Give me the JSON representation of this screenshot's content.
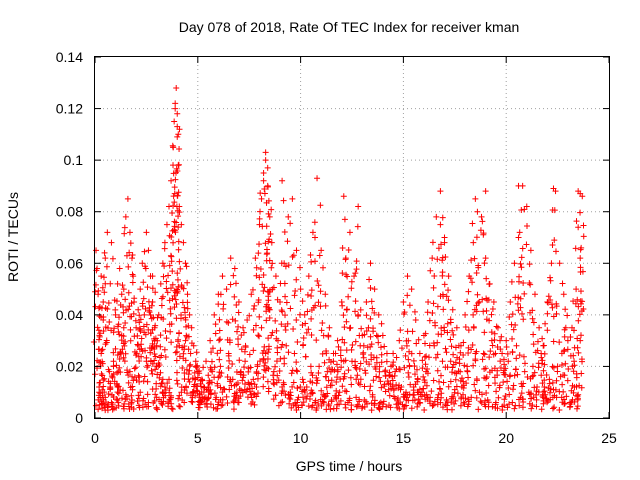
{
  "chart_data": {
    "type": "scatter",
    "title": "Day 078 of 2018, Rate Of TEC Index for receiver kman",
    "xlabel": "GPS time / hours",
    "ylabel": "ROTI / TECUs",
    "xlim": [
      0,
      25
    ],
    "ylim": [
      0,
      0.14
    ],
    "xticks": [
      "0",
      "5",
      "10",
      "15",
      "20",
      "25"
    ],
    "yticks": [
      "0",
      "0.02",
      "0.04",
      "0.06",
      "0.08",
      "0.1",
      "0.12",
      "0.14"
    ],
    "grid": true,
    "marker": "+",
    "series_color": "#ff0000",
    "series": [
      {
        "name": "ROTI",
        "x": [
          0.05,
          0.1,
          0.15,
          0.2,
          0.3,
          0.4,
          0.5,
          0.6,
          0.7,
          0.8,
          0.9,
          1.0,
          1.1,
          1.2,
          1.3,
          1.4,
          1.5,
          1.6,
          1.7,
          1.8,
          1.9,
          2.0,
          2.1,
          2.2,
          2.3,
          2.4,
          2.5,
          2.6,
          2.7,
          2.8,
          2.9,
          3.0,
          3.1,
          3.2,
          3.3,
          3.4,
          3.5,
          3.6,
          3.7,
          3.8,
          3.85,
          3.9,
          3.95,
          4.0,
          4.05,
          4.1,
          4.2,
          4.3,
          4.4,
          4.5,
          4.6,
          4.7,
          4.8,
          4.9,
          5.0,
          5.2,
          5.4,
          5.6,
          5.8,
          6.0,
          6.2,
          6.4,
          6.6,
          6.8,
          7.0,
          7.2,
          7.4,
          7.6,
          7.8,
          8.0,
          8.1,
          8.2,
          8.3,
          8.4,
          8.5,
          8.6,
          8.8,
          9.0,
          9.2,
          9.4,
          9.6,
          9.8,
          10.0,
          10.2,
          10.4,
          10.6,
          10.8,
          11.0,
          11.2,
          11.4,
          11.6,
          11.8,
          12.0,
          12.2,
          12.4,
          12.6,
          12.8,
          13.0,
          13.2,
          13.4,
          13.6,
          13.8,
          14.0,
          14.2,
          14.4,
          14.6,
          14.8,
          15.0,
          15.2,
          15.4,
          15.6,
          15.8,
          16.0,
          16.2,
          16.4,
          16.6,
          16.8,
          17.0,
          17.2,
          17.4,
          17.6,
          17.8,
          18.0,
          18.2,
          18.4,
          18.6,
          18.8,
          19.0,
          19.2,
          19.4,
          19.6,
          19.8,
          20.0,
          20.2,
          20.4,
          20.6,
          20.8,
          21.0,
          21.2,
          21.4,
          21.6,
          21.8,
          22.0,
          22.2,
          22.4,
          22.6,
          22.8,
          23.0,
          23.2,
          23.4,
          23.6,
          23.7,
          0.2,
          0.5,
          0.8,
          1.1,
          1.5,
          1.8,
          2.2,
          2.6,
          3.0,
          3.4,
          3.7,
          4.2,
          4.6,
          5.1,
          5.5,
          5.9,
          6.3,
          6.7,
          7.1,
          7.5,
          7.9,
          8.3,
          8.7,
          9.1,
          9.5,
          9.9,
          10.3,
          10.7,
          11.1,
          11.5,
          11.9,
          12.3,
          12.7,
          13.1,
          13.5,
          13.9,
          14.3,
          14.7,
          15.1,
          15.5,
          15.9,
          16.3,
          16.7,
          17.1,
          17.5,
          17.9,
          18.3,
          18.7,
          19.1,
          19.5,
          19.9,
          20.3,
          20.7,
          21.1,
          21.5,
          21.9,
          22.3,
          22.7,
          23.1,
          23.5,
          0.3,
          0.9,
          1.7,
          2.5,
          3.3,
          4.1,
          4.9,
          5.7,
          6.5,
          7.3,
          8.1,
          8.9,
          9.7,
          10.5,
          11.3,
          12.1,
          12.9,
          13.7,
          14.5,
          15.3,
          16.1,
          16.9,
          17.7,
          18.5,
          19.3,
          20.1,
          20.9,
          21.7,
          22.5,
          23.3,
          0.4,
          1.3,
          2.1,
          2.9,
          3.6,
          4.4,
          5.3,
          6.1,
          6.9,
          7.7,
          8.5,
          9.3,
          10.1,
          10.9,
          11.7,
          12.5,
          13.3,
          14.1,
          14.9,
          15.7,
          16.5,
          17.3,
          18.1,
          18.9,
          19.7,
          20.5,
          21.3,
          22.1,
          22.9,
          23.6,
          3.9,
          4.0,
          4.0,
          8.3,
          8.4,
          8.2,
          9.1,
          10.7,
          16.8,
          18.5,
          20.6,
          22.3,
          23.6,
          23.5,
          1.4,
          2.8,
          12.1,
          12.8,
          17.0,
          19.0
        ],
        "y": [
          0.065,
          0.058,
          0.048,
          0.012,
          0.055,
          0.045,
          0.062,
          0.072,
          0.018,
          0.068,
          0.022,
          0.04,
          0.052,
          0.058,
          0.048,
          0.035,
          0.078,
          0.085,
          0.072,
          0.062,
          0.045,
          0.035,
          0.028,
          0.05,
          0.06,
          0.04,
          0.072,
          0.065,
          0.055,
          0.045,
          0.035,
          0.028,
          0.04,
          0.052,
          0.06,
          0.068,
          0.075,
          0.082,
          0.092,
          0.105,
          0.115,
          0.122,
          0.128,
          0.118,
          0.098,
          0.082,
          0.075,
          0.068,
          0.06,
          0.048,
          0.04,
          0.035,
          0.028,
          0.022,
          0.018,
          0.015,
          0.022,
          0.03,
          0.04,
          0.048,
          0.055,
          0.05,
          0.062,
          0.058,
          0.045,
          0.035,
          0.038,
          0.048,
          0.062,
          0.075,
          0.085,
          0.095,
          0.103,
          0.09,
          0.078,
          0.068,
          0.055,
          0.045,
          0.06,
          0.078,
          0.085,
          0.065,
          0.05,
          0.04,
          0.055,
          0.072,
          0.093,
          0.065,
          0.048,
          0.035,
          0.025,
          0.03,
          0.045,
          0.062,
          0.072,
          0.055,
          0.04,
          0.032,
          0.045,
          0.06,
          0.05,
          0.04,
          0.032,
          0.025,
          0.02,
          0.018,
          0.03,
          0.045,
          0.055,
          0.05,
          0.038,
          0.025,
          0.032,
          0.045,
          0.062,
          0.078,
          0.088,
          0.07,
          0.055,
          0.042,
          0.035,
          0.028,
          0.04,
          0.055,
          0.068,
          0.08,
          0.078,
          0.062,
          0.052,
          0.045,
          0.035,
          0.025,
          0.03,
          0.045,
          0.06,
          0.07,
          0.09,
          0.082,
          0.065,
          0.048,
          0.035,
          0.028,
          0.045,
          0.06,
          0.088,
          0.06,
          0.048,
          0.03,
          0.035,
          0.05,
          0.062,
          0.086,
          0.01,
          0.008,
          0.006,
          0.012,
          0.009,
          0.007,
          0.01,
          0.006,
          0.008,
          0.012,
          0.008,
          0.01,
          0.014,
          0.009,
          0.012,
          0.008,
          0.011,
          0.015,
          0.018,
          0.013,
          0.02,
          0.025,
          0.018,
          0.012,
          0.01,
          0.008,
          0.012,
          0.006,
          0.009,
          0.007,
          0.01,
          0.006,
          0.008,
          0.007,
          0.009,
          0.006,
          0.005,
          0.007,
          0.009,
          0.012,
          0.01,
          0.008,
          0.009,
          0.007,
          0.011,
          0.009,
          0.008,
          0.01,
          0.007,
          0.006,
          0.005,
          0.006,
          0.008,
          0.01,
          0.012,
          0.009,
          0.011,
          0.008,
          0.006,
          0.009,
          0.025,
          0.02,
          0.018,
          0.022,
          0.015,
          0.028,
          0.02,
          0.018,
          0.025,
          0.022,
          0.035,
          0.03,
          0.025,
          0.02,
          0.018,
          0.022,
          0.028,
          0.032,
          0.025,
          0.02,
          0.018,
          0.022,
          0.028,
          0.025,
          0.03,
          0.022,
          0.018,
          0.025,
          0.02,
          0.022,
          0.038,
          0.032,
          0.042,
          0.03,
          0.015,
          0.03,
          0.012,
          0.02,
          0.01,
          0.015,
          0.042,
          0.028,
          0.015,
          0.02,
          0.025,
          0.022,
          0.035,
          0.018,
          0.012,
          0.015,
          0.028,
          0.022,
          0.02,
          0.025,
          0.03,
          0.028,
          0.02,
          0.015,
          0.035,
          0.03,
          0.12,
          0.113,
          0.109,
          0.1,
          0.097,
          0.092,
          0.092,
          0.07,
          0.075,
          0.085,
          0.09,
          0.089,
          0.087,
          0.088,
          0.05,
          0.055,
          0.086,
          0.082,
          0.068,
          0.088
        ]
      }
    ]
  }
}
